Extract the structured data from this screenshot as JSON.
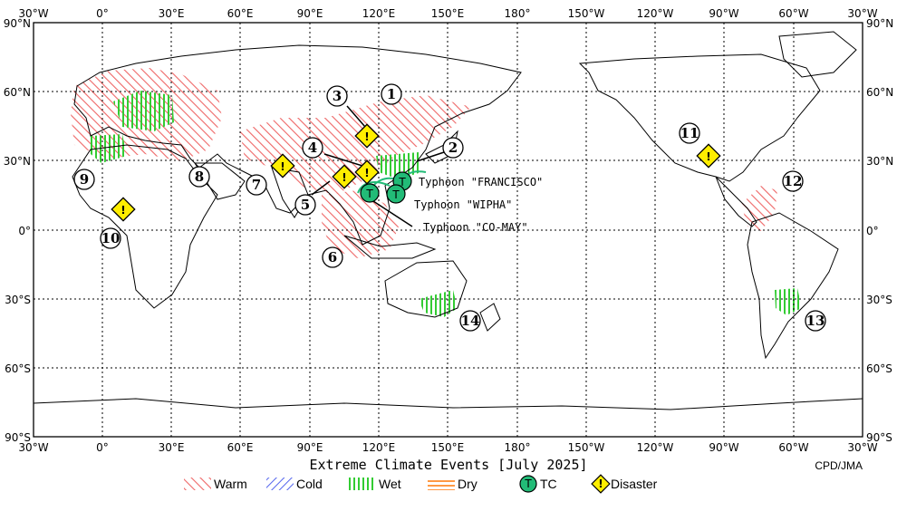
{
  "map": {
    "title": "Extreme Climate Events [July 2025]",
    "credit": "CPD/JMA",
    "lon_labels": [
      "30°W",
      "0°",
      "30°E",
      "60°E",
      "90°E",
      "120°E",
      "150°E",
      "180°",
      "150°W",
      "120°W",
      "90°W",
      "60°W",
      "30°W"
    ],
    "lat_labels": [
      "90°N",
      "60°N",
      "30°N",
      "0°",
      "30°S",
      "60°S",
      "90°S"
    ],
    "colors": {
      "warm": "#ee6666",
      "cold": "#5566ee",
      "wet": "#33cc33",
      "dry": "#ff9944",
      "tc": "#22bb77",
      "disaster": "#ffee00"
    }
  },
  "events": {
    "numbers": [
      "1",
      "2",
      "3",
      "4",
      "5",
      "6",
      "7",
      "8",
      "9",
      "10",
      "11",
      "12",
      "13",
      "14"
    ]
  },
  "typhoons": {
    "francisco": "Typhoon \"FRANCISCO\"",
    "wipha": "Typhoon \"WIPHA\"",
    "comay": "Typhoon \"CO-MAY\"",
    "tc_symbol": "T"
  },
  "disaster_symbol": "!",
  "legend": {
    "warm": "Warm",
    "cold": "Cold",
    "wet": "Wet",
    "dry": "Dry",
    "tc": "TC",
    "tc_symbol": "T",
    "disaster": "Disaster",
    "disaster_symbol": "!"
  }
}
